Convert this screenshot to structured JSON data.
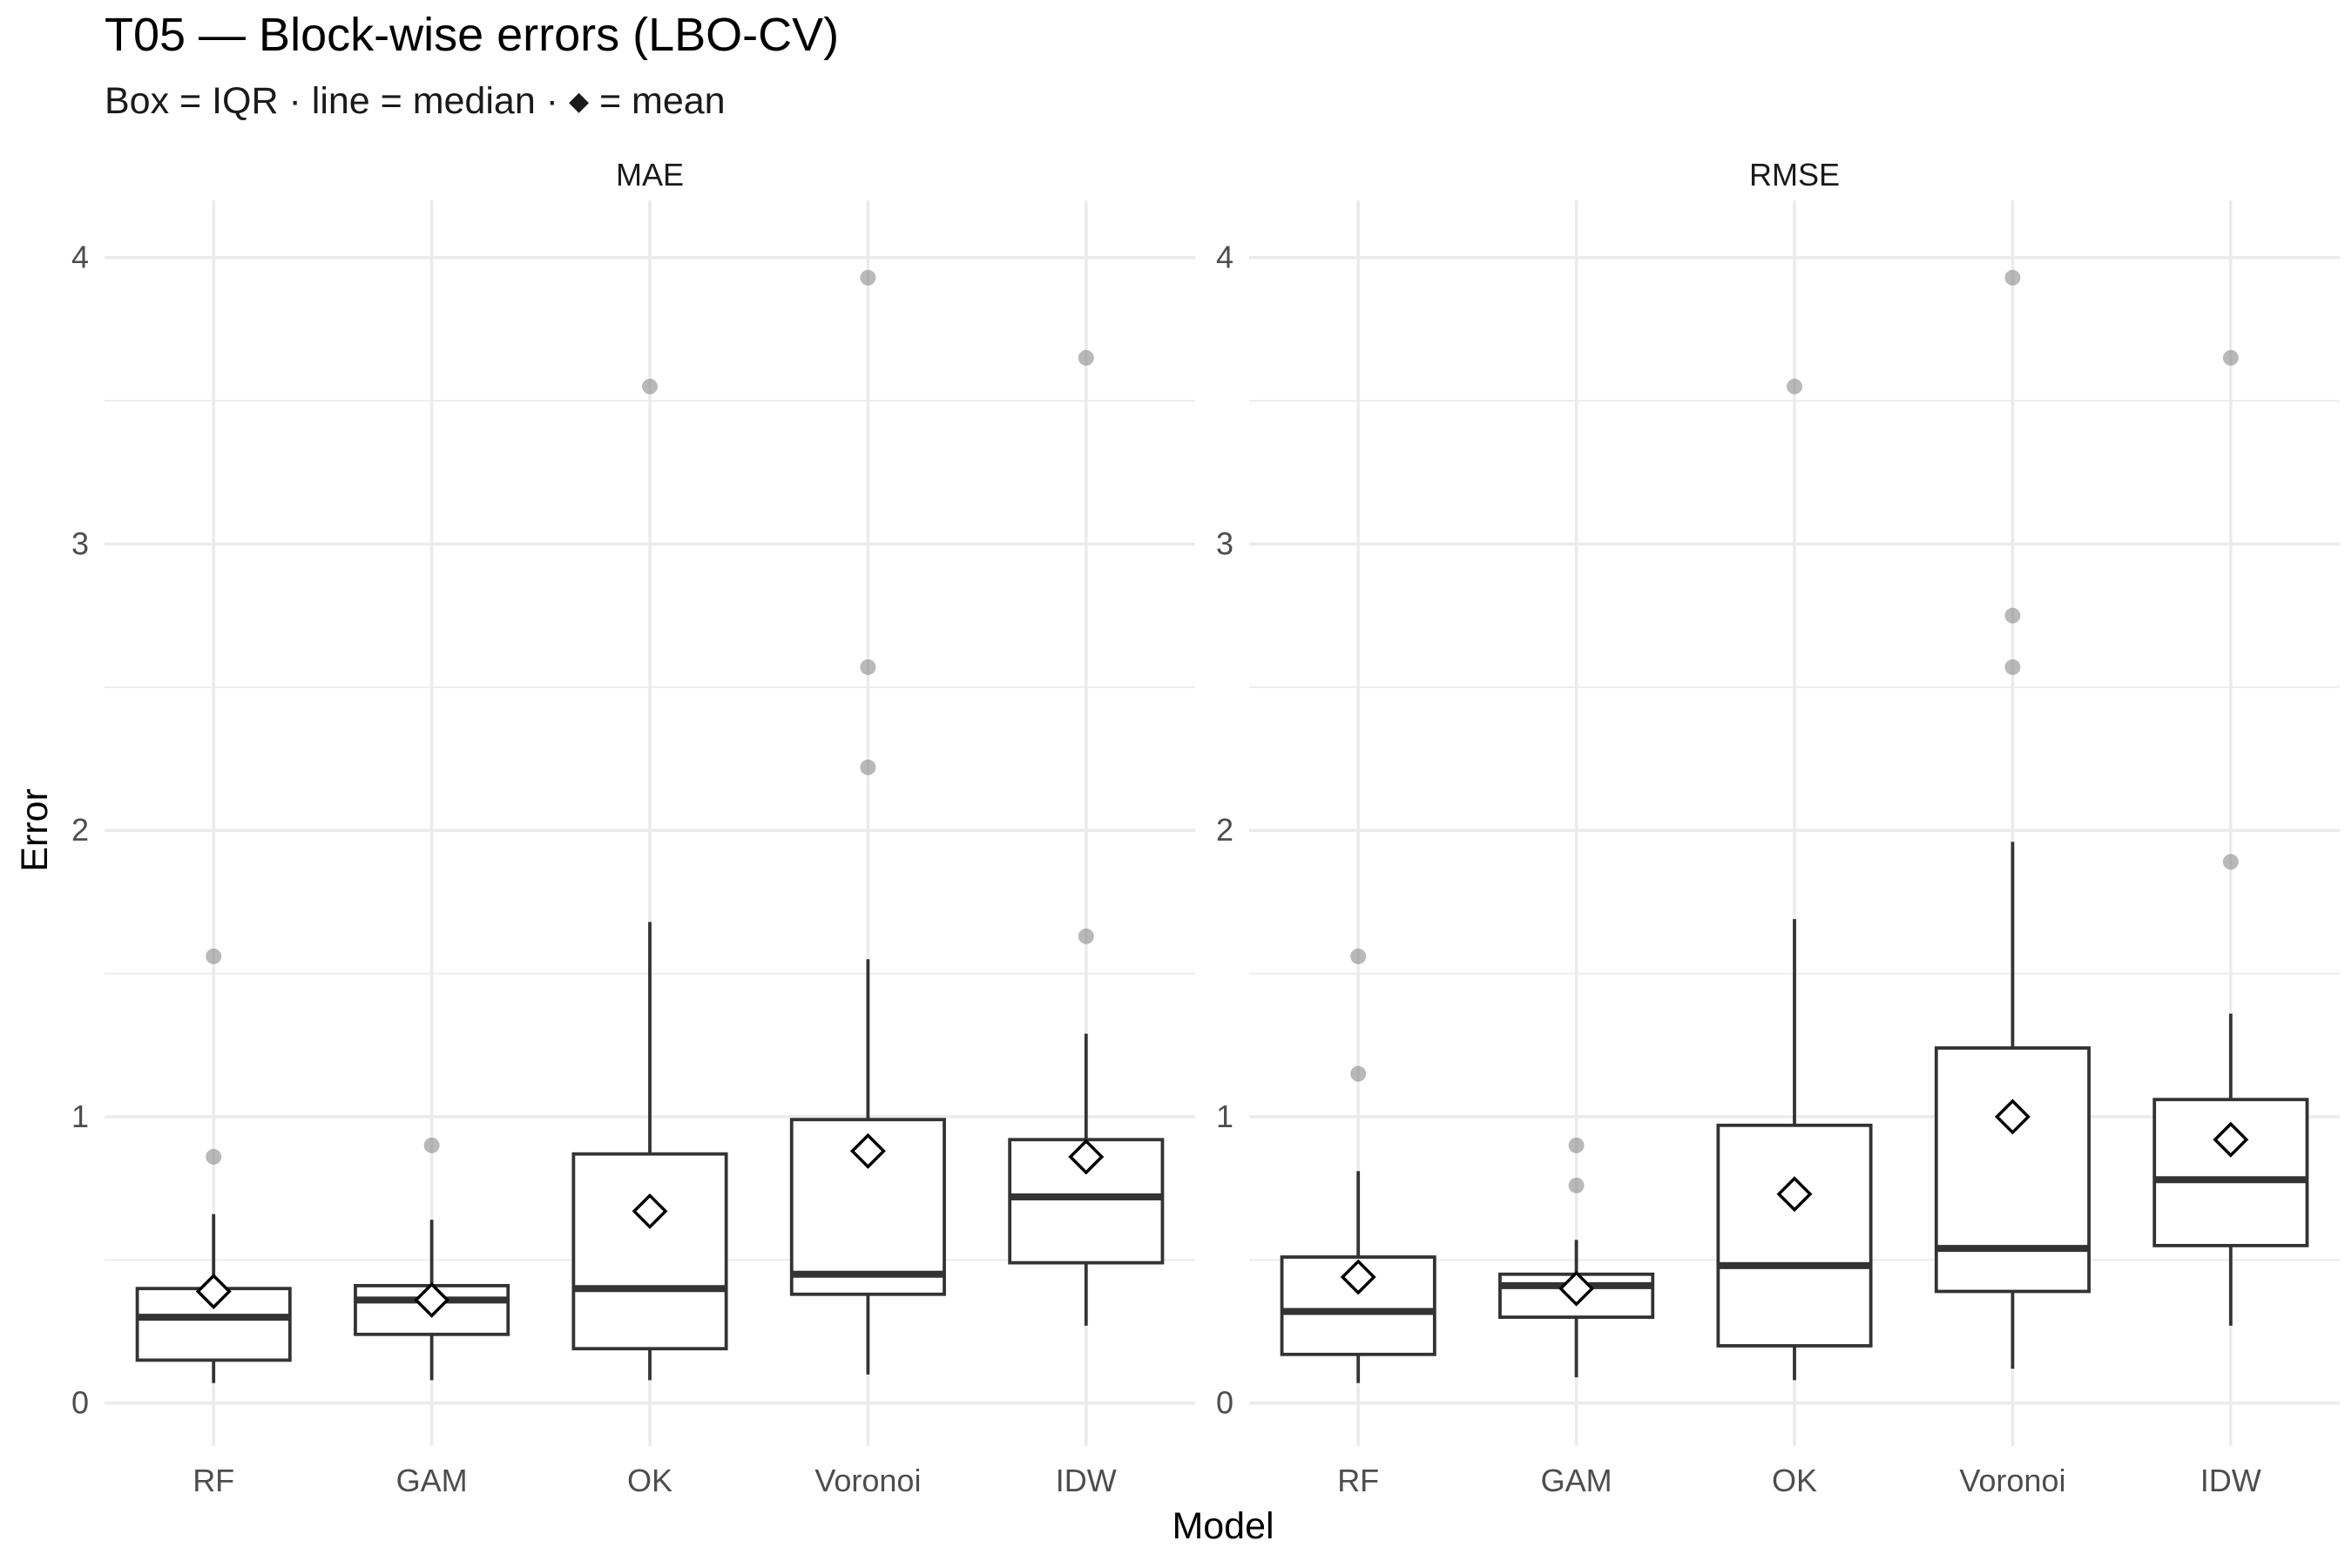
{
  "chart_data": {
    "type": "box",
    "title": "T05 — Block-wise errors (LBO-CV)",
    "subtitle": {
      "before_symbol": "Box = IQR · line = median · ",
      "after_symbol": " = mean"
    },
    "xlabel": "Model",
    "ylabel": "Error",
    "ylim": [
      -0.15,
      4.2
    ],
    "yticks": [
      0,
      1,
      2,
      3,
      4
    ],
    "categories": [
      "RF",
      "GAM",
      "OK",
      "Voronoi",
      "IDW"
    ],
    "facets": [
      {
        "name": "MAE",
        "boxes": [
          {
            "category": "RF",
            "lower_whisker": 0.07,
            "q1": 0.15,
            "median": 0.3,
            "q3": 0.4,
            "upper_whisker": 0.66,
            "mean": 0.39,
            "outliers": [
              0.86,
              1.56
            ]
          },
          {
            "category": "GAM",
            "lower_whisker": 0.08,
            "q1": 0.24,
            "median": 0.36,
            "q3": 0.41,
            "upper_whisker": 0.64,
            "mean": 0.36,
            "outliers": [
              0.9
            ]
          },
          {
            "category": "OK",
            "lower_whisker": 0.08,
            "q1": 0.19,
            "median": 0.4,
            "q3": 0.87,
            "upper_whisker": 1.68,
            "mean": 0.67,
            "outliers": [
              3.55
            ]
          },
          {
            "category": "Voronoi",
            "lower_whisker": 0.1,
            "q1": 0.38,
            "median": 0.45,
            "q3": 0.99,
            "upper_whisker": 1.55,
            "mean": 0.88,
            "outliers": [
              2.22,
              2.57,
              3.93
            ]
          },
          {
            "category": "IDW",
            "lower_whisker": 0.27,
            "q1": 0.49,
            "median": 0.72,
            "q3": 0.92,
            "upper_whisker": 1.29,
            "mean": 0.86,
            "outliers": [
              1.63,
              3.65
            ]
          }
        ]
      },
      {
        "name": "RMSE",
        "boxes": [
          {
            "category": "RF",
            "lower_whisker": 0.07,
            "q1": 0.17,
            "median": 0.32,
            "q3": 0.51,
            "upper_whisker": 0.81,
            "mean": 0.44,
            "outliers": [
              1.15,
              1.56
            ]
          },
          {
            "category": "GAM",
            "lower_whisker": 0.09,
            "q1": 0.3,
            "median": 0.41,
            "q3": 0.45,
            "upper_whisker": 0.57,
            "mean": 0.4,
            "outliers": [
              0.76,
              0.9
            ]
          },
          {
            "category": "OK",
            "lower_whisker": 0.08,
            "q1": 0.2,
            "median": 0.48,
            "q3": 0.97,
            "upper_whisker": 1.69,
            "mean": 0.73,
            "outliers": [
              3.55
            ]
          },
          {
            "category": "Voronoi",
            "lower_whisker": 0.12,
            "q1": 0.39,
            "median": 0.54,
            "q3": 1.24,
            "upper_whisker": 1.96,
            "mean": 1.0,
            "outliers": [
              2.57,
              2.75,
              3.93
            ]
          },
          {
            "category": "IDW",
            "lower_whisker": 0.27,
            "q1": 0.55,
            "median": 0.78,
            "q3": 1.06,
            "upper_whisker": 1.36,
            "mean": 0.92,
            "outliers": [
              1.89,
              3.65
            ]
          }
        ]
      }
    ],
    "grid": true,
    "legend": "none"
  }
}
